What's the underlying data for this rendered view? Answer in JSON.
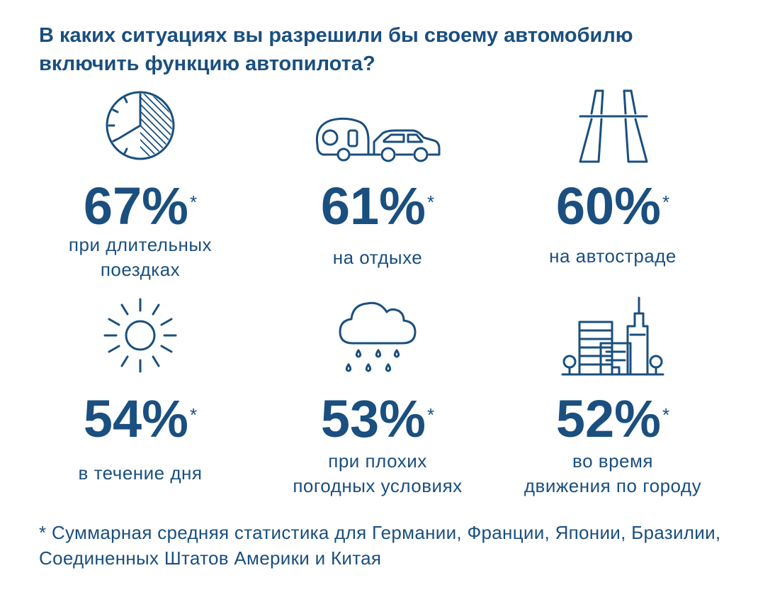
{
  "title": "В каких ситуациях вы разрешили бы своему автомобилю включить функцию автопилота?",
  "items": [
    {
      "icon": "clock-icon",
      "value": "67%",
      "star": "*",
      "label": "при длительных\nпоездках"
    },
    {
      "icon": "trailer-car-icon",
      "value": "61%",
      "star": "*",
      "label": "на отдыхе"
    },
    {
      "icon": "highway-icon",
      "value": "60%",
      "star": "*",
      "label": "на автостраде"
    },
    {
      "icon": "sun-icon",
      "value": "54%",
      "star": "*",
      "label": "в течение дня"
    },
    {
      "icon": "rain-cloud-icon",
      "value": "53%",
      "star": "*",
      "label": "при плохих\nпогодных условиях"
    },
    {
      "icon": "city-icon",
      "value": "52%",
      "star": "*",
      "label": "во время\nдвижения по городу"
    }
  ],
  "footnote": "* Суммарная средняя статистика для Германии, Франции, Японии, Бразилии, Соединенных Штатов Америки и Китая",
  "colors": {
    "accent": "#1a4f7f",
    "background": "#ffffff"
  }
}
